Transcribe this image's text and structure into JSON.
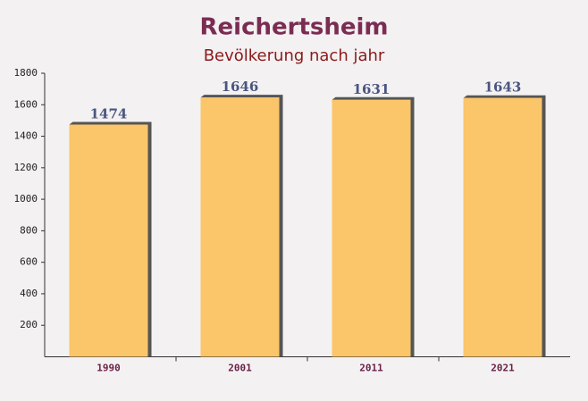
{
  "chart_data": {
    "type": "bar",
    "title": "Reichertsheim",
    "subtitle": "Bevölkerung nach jahr",
    "categories": [
      "1990",
      "2001",
      "2011",
      "2021"
    ],
    "values": [
      1474,
      1646,
      1631,
      1643
    ],
    "color": "#fcc05a",
    "ylim": [
      0,
      1800
    ],
    "yticks": [
      200,
      400,
      600,
      800,
      1000,
      1200,
      1400,
      1600,
      1800
    ],
    "grid": false
  }
}
